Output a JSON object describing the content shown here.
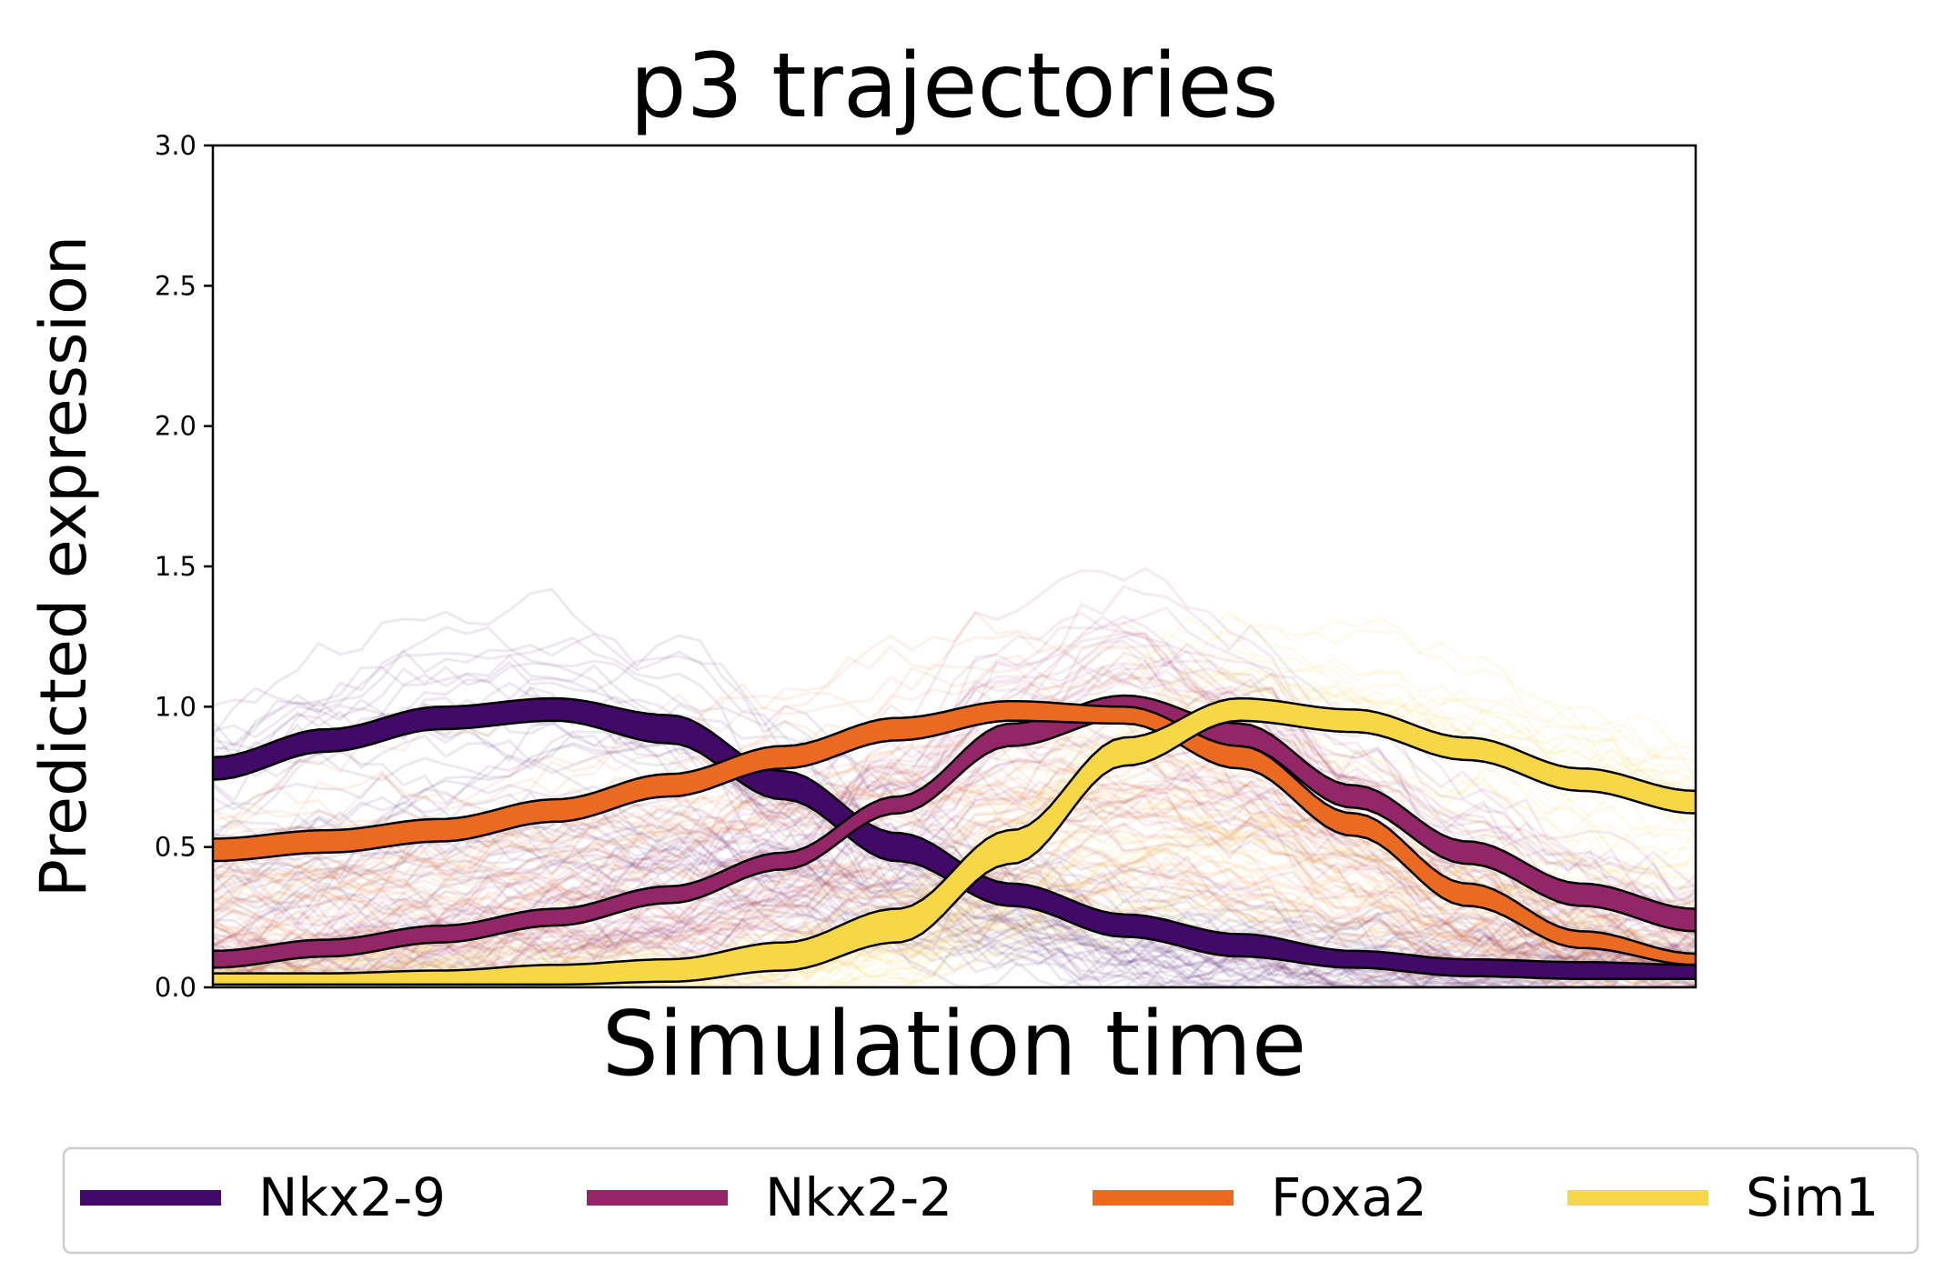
{
  "chart_data": {
    "type": "line",
    "title": "p3 trajectories",
    "xlabel": "Simulation time",
    "ylabel": "Predicted expression",
    "ylim": [
      0,
      3.0
    ],
    "yticks": [
      0.0,
      0.5,
      1.0,
      1.5,
      2.0,
      2.5,
      3.0
    ],
    "ytick_labels": [
      "0.0",
      "0.5",
      "1.0",
      "1.5",
      "2.0",
      "2.5",
      "3.0"
    ],
    "x_ticks_shown": false,
    "legend_position": "bottom",
    "series": [
      {
        "name": "Nkx2-9",
        "color": "#420a68",
        "mean": [
          0.78,
          0.88,
          0.96,
          0.99,
          0.92,
          0.72,
          0.5,
          0.33,
          0.22,
          0.15,
          0.1,
          0.07,
          0.06,
          0.05
        ],
        "band_lower": [
          0.74,
          0.84,
          0.92,
          0.95,
          0.87,
          0.67,
          0.45,
          0.29,
          0.18,
          0.11,
          0.07,
          0.04,
          0.03,
          0.03
        ],
        "band_upper": [
          0.82,
          0.92,
          1.0,
          1.03,
          0.97,
          0.77,
          0.55,
          0.37,
          0.26,
          0.19,
          0.13,
          0.1,
          0.09,
          0.08
        ]
      },
      {
        "name": "Nkx2-2",
        "color": "#932667",
        "mean": [
          0.1,
          0.14,
          0.19,
          0.25,
          0.33,
          0.45,
          0.65,
          0.9,
          1.0,
          0.9,
          0.68,
          0.48,
          0.33,
          0.24
        ],
        "band_lower": [
          0.07,
          0.11,
          0.16,
          0.22,
          0.3,
          0.42,
          0.62,
          0.86,
          0.96,
          0.86,
          0.64,
          0.44,
          0.29,
          0.2
        ],
        "band_upper": [
          0.13,
          0.17,
          0.22,
          0.28,
          0.36,
          0.48,
          0.68,
          0.94,
          1.04,
          0.94,
          0.72,
          0.52,
          0.37,
          0.28
        ]
      },
      {
        "name": "Foxa2",
        "color": "#ea6a22",
        "mean": [
          0.49,
          0.52,
          0.56,
          0.63,
          0.72,
          0.82,
          0.92,
          0.98,
          0.97,
          0.82,
          0.58,
          0.33,
          0.17,
          0.1
        ],
        "band_lower": [
          0.45,
          0.48,
          0.52,
          0.59,
          0.68,
          0.78,
          0.88,
          0.95,
          0.94,
          0.78,
          0.54,
          0.29,
          0.14,
          0.08
        ],
        "band_upper": [
          0.53,
          0.56,
          0.6,
          0.67,
          0.76,
          0.86,
          0.96,
          1.02,
          1.0,
          0.86,
          0.62,
          0.37,
          0.2,
          0.12
        ]
      },
      {
        "name": "Sim1",
        "color": "#f6d746",
        "mean": [
          0.03,
          0.03,
          0.04,
          0.05,
          0.07,
          0.11,
          0.22,
          0.5,
          0.84,
          0.99,
          0.95,
          0.85,
          0.74,
          0.66
        ],
        "band_lower": [
          0.01,
          0.01,
          0.01,
          0.01,
          0.02,
          0.06,
          0.16,
          0.44,
          0.79,
          0.95,
          0.91,
          0.81,
          0.7,
          0.62
        ],
        "band_upper": [
          0.05,
          0.05,
          0.06,
          0.08,
          0.1,
          0.16,
          0.28,
          0.56,
          0.89,
          1.03,
          0.99,
          0.89,
          0.78,
          0.7
        ]
      }
    ]
  }
}
